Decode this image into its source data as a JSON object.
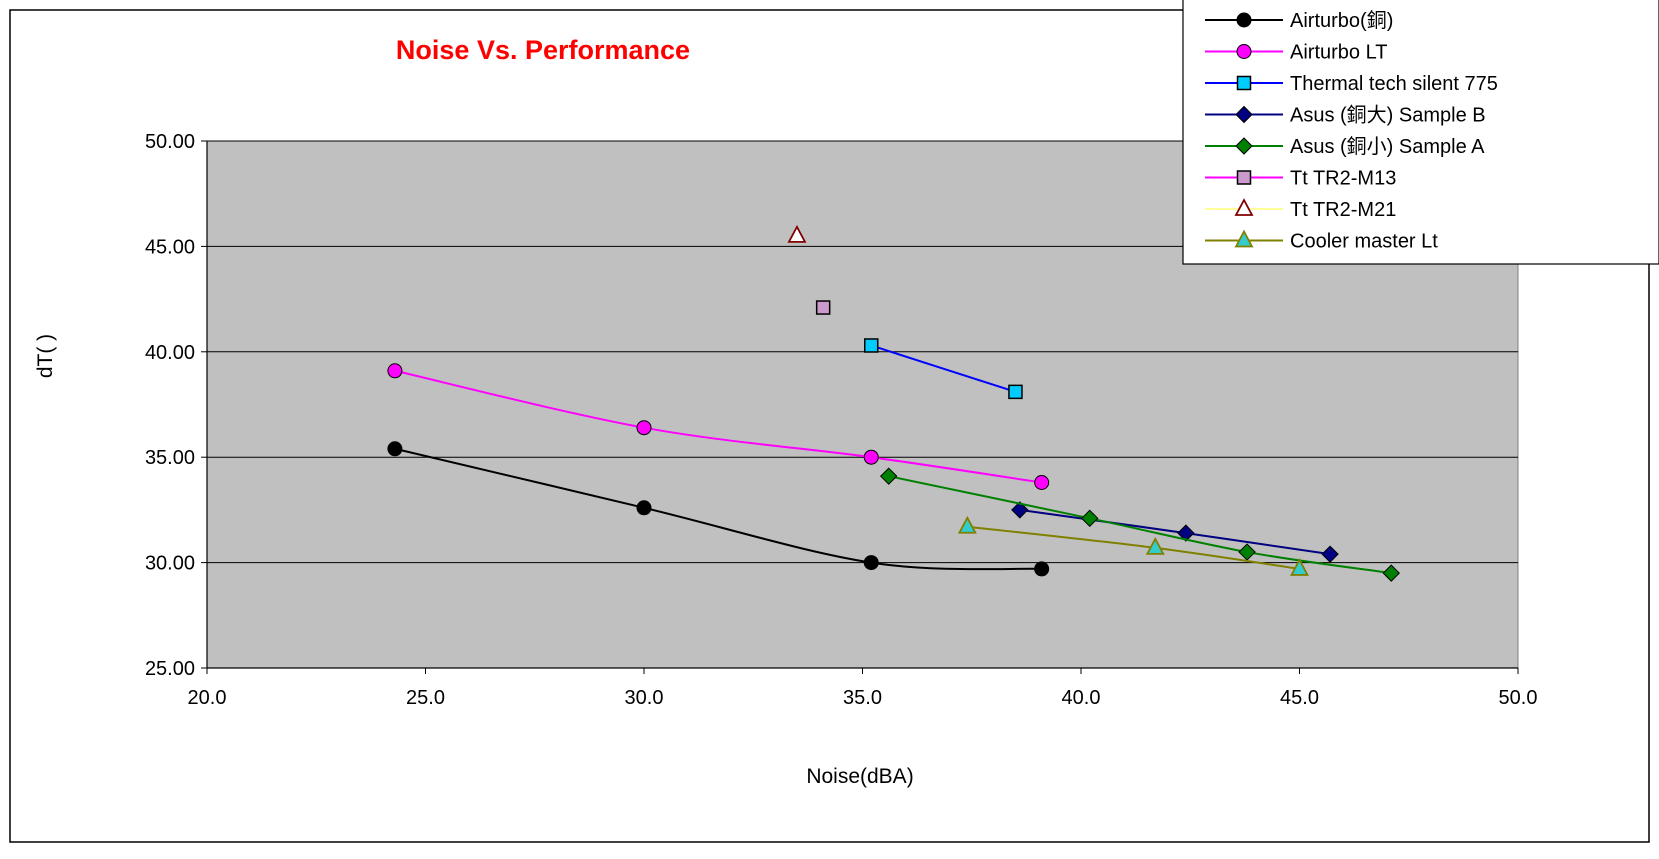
{
  "chart_data": {
    "type": "line",
    "title": "Noise Vs. Performance",
    "xlabel": "Noise(dBA)",
    "ylabel": "dT(   )",
    "xlim": [
      20.0,
      50.0
    ],
    "ylim": [
      25.0,
      50.0
    ],
    "x_ticks": [
      "20.0",
      "25.0",
      "30.0",
      "35.0",
      "40.0",
      "45.0",
      "50.0"
    ],
    "y_ticks": [
      "25.00",
      "30.00",
      "35.00",
      "40.00",
      "45.00",
      "50.00"
    ],
    "grid": "horizontal",
    "legend_position": "top-right",
    "colors": {
      "title": "#ff0000",
      "plot_background": "#c0c0c0",
      "grid": "#000000"
    },
    "series": [
      {
        "name": "Airturbo(銅)",
        "color": "#000000",
        "marker": "circle",
        "marker_fill": "#000000",
        "x": [
          24.3,
          30.0,
          35.2,
          39.1
        ],
        "y": [
          35.4,
          32.6,
          30.0,
          29.7
        ]
      },
      {
        "name": "Airturbo LT",
        "color": "#ff00ff",
        "marker": "circle",
        "marker_fill": "#ff00ff",
        "x": [
          24.3,
          30.0,
          35.2,
          39.1
        ],
        "y": [
          39.1,
          36.4,
          35.0,
          33.8
        ]
      },
      {
        "name": "Thermal tech silent 775",
        "color": "#0000ff",
        "marker": "square",
        "marker_fill": "#00ccff",
        "x": [
          35.2,
          38.5
        ],
        "y": [
          40.3,
          38.1
        ]
      },
      {
        "name": "Asus (銅大) Sample B",
        "color": "#000080",
        "marker": "diamond",
        "marker_fill": "#000080",
        "x": [
          38.6,
          42.4,
          45.7
        ],
        "y": [
          32.5,
          31.4,
          30.4
        ]
      },
      {
        "name": "Asus (銅小) Sample A",
        "color": "#008000",
        "marker": "diamond",
        "marker_fill": "#008000",
        "x": [
          35.6,
          40.2,
          43.8,
          47.1
        ],
        "y": [
          34.1,
          32.1,
          30.5,
          29.5
        ]
      },
      {
        "name": "Tt TR2-M13",
        "color": "#ff00ff",
        "marker": "square",
        "marker_fill": "#cc99cc",
        "x": [
          34.1
        ],
        "y": [
          42.1
        ]
      },
      {
        "name": "Tt TR2-M21",
        "color": "#ffff99",
        "marker": "triangle",
        "marker_fill": "#ffffff",
        "marker_stroke": "#800000",
        "x": [
          33.5
        ],
        "y": [
          45.5
        ]
      },
      {
        "name": "Cooler master Lt",
        "color": "#808000",
        "marker": "triangle",
        "marker_fill": "#33cccc",
        "marker_stroke": "#808000",
        "x": [
          37.4,
          41.7,
          45.0
        ],
        "y": [
          31.7,
          30.7,
          29.7
        ]
      }
    ]
  }
}
